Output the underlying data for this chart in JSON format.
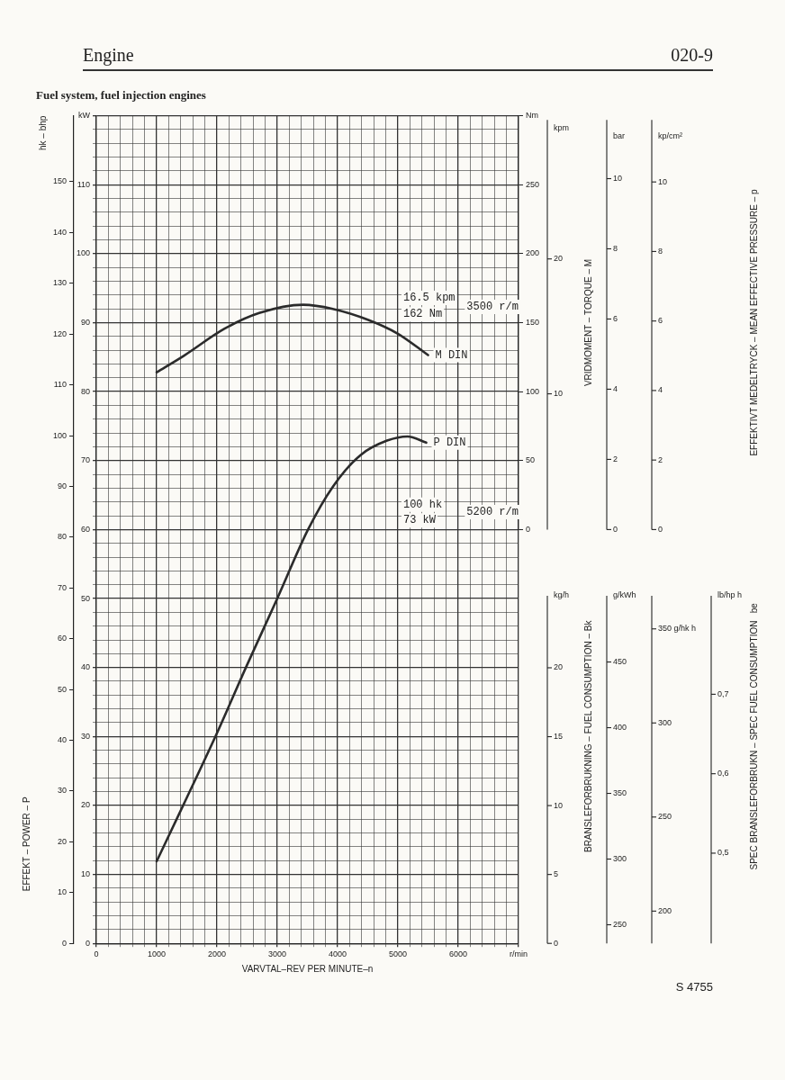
{
  "chart_data": {
    "type": "line",
    "title": "Fuel system, fuel injection engines",
    "xlabel": "VARVTAL–REV PER MINUTE–n",
    "ylabel": "EFFEKT – POWER – P",
    "y2label": "VRIDMOMENT – TORQUE – M",
    "y3label": "hk – bhp",
    "annotations": [
      "Engine",
      "020-9",
      "S 4755",
      "10",
      "20",
      "kpm",
      "0",
      "2",
      "4",
      "6",
      "8",
      "10",
      "bar",
      "0",
      "2",
      "4",
      "6",
      "8",
      "10",
      "kp/cm²",
      "0",
      "5",
      "10",
      "15",
      "20",
      "kg/h",
      "250",
      "300",
      "350",
      "400",
      "450",
      "g/kWh",
      "200",
      "250",
      "300",
      "350 g/hk h",
      "0,5",
      "0,6",
      "0,7",
      "lb/hp h",
      "16.5 kpm",
      "162 Nm",
      "3500 r/m",
      "100 hk",
      "73 kW",
      "5200 r/m",
      "EFFEKTIVT MEDELTRYCK – MEAN EFFECTIVE PRESSURE – p",
      "BRANSLEFORBRUKNING – FUEL CONSUMPTION – Bk",
      "SPEC BRANSLEFORBRUKN – SPEC FUEL CONSUMPTION   be"
    ],
    "series": [
      {
        "name": "M DIN",
        "color": "#2b2b2b",
        "axis": "y2",
        "x": [
          1000,
          1450,
          2120,
          2700,
          3430,
          3920,
          4510,
          5000,
          5500
        ],
        "values": [
          114,
          126,
          145.5,
          157,
          163,
          160,
          152,
          142,
          126.5
        ]
      },
      {
        "name": "P DIN",
        "color": "#2b2b2b",
        "axis": "y",
        "x": [
          1000,
          1450,
          1990,
          2490,
          3000,
          3510,
          3920,
          4380,
          4820,
          5160,
          5470
        ],
        "values": [
          11.9,
          20.2,
          30.3,
          40.2,
          50,
          60,
          66.2,
          70.8,
          72.9,
          73.5,
          72.6
        ]
      }
    ],
    "xlim": [
      0,
      7000
    ],
    "xticks": [
      0,
      {
        "value": 200,
        "label": null
      },
      {
        "value": 400,
        "label": null
      },
      {
        "value": 600,
        "label": null
      },
      {
        "value": 800,
        "label": null
      },
      1000,
      {
        "value": 1200,
        "label": null
      },
      {
        "value": 1400,
        "label": null
      },
      {
        "value": 1600,
        "label": null
      },
      {
        "value": 1800,
        "label": null
      },
      2000,
      {
        "value": 2200,
        "label": null
      },
      {
        "value": 2400,
        "label": null
      },
      {
        "value": 2600,
        "label": null
      },
      {
        "value": 2800,
        "label": null
      },
      3000,
      {
        "value": 3200,
        "label": null
      },
      {
        "value": 3400,
        "label": null
      },
      {
        "value": 3600,
        "label": null
      },
      {
        "value": 3800,
        "label": null
      },
      4000,
      {
        "value": 4200,
        "label": null
      },
      {
        "value": 4400,
        "label": null
      },
      {
        "value": 4600,
        "label": null
      },
      {
        "value": 4800,
        "label": null
      },
      5000,
      {
        "value": 5200,
        "label": null
      },
      {
        "value": 5400,
        "label": null
      },
      {
        "value": 5600,
        "label": null
      },
      {
        "value": 5800,
        "label": null
      },
      6000,
      {
        "value": 6200,
        "label": null
      },
      {
        "value": 6400,
        "label": null
      },
      {
        "value": 6600,
        "label": null
      },
      {
        "value": 6800,
        "label": null
      },
      {
        "value": 7000,
        "label": "r/min"
      }
    ],
    "ylim": [
      0,
      120
    ],
    "yticks": [
      0,
      {
        "value": 2,
        "label": null
      },
      {
        "value": 4,
        "label": null
      },
      {
        "value": 6,
        "label": null
      },
      {
        "value": 8,
        "label": null
      },
      10,
      {
        "value": 12,
        "label": null
      },
      {
        "value": 14,
        "label": null
      },
      {
        "value": 16,
        "label": null
      },
      {
        "value": 18,
        "label": null
      },
      20,
      {
        "value": 22,
        "label": null
      },
      {
        "value": 24,
        "label": null
      },
      {
        "value": 26,
        "label": null
      },
      {
        "value": 28,
        "label": null
      },
      30,
      {
        "value": 32,
        "label": null
      },
      {
        "value": 34,
        "label": null
      },
      {
        "value": 36,
        "label": null
      },
      {
        "value": 38,
        "label": null
      },
      40,
      {
        "value": 42,
        "label": null
      },
      {
        "value": 44,
        "label": null
      },
      {
        "value": 46,
        "label": null
      },
      {
        "value": 48,
        "label": null
      },
      50,
      {
        "value": 52,
        "label": null
      },
      {
        "value": 54,
        "label": null
      },
      {
        "value": 56,
        "label": null
      },
      {
        "value": 58,
        "label": null
      },
      60,
      {
        "value": 62,
        "label": null
      },
      {
        "value": 64,
        "label": null
      },
      {
        "value": 66,
        "label": null
      },
      {
        "value": 68,
        "label": null
      },
      70,
      {
        "value": 72,
        "label": null
      },
      {
        "value": 74,
        "label": null
      },
      {
        "value": 76,
        "label": null
      },
      {
        "value": 78,
        "label": null
      },
      80,
      {
        "value": 82,
        "label": null
      },
      {
        "value": 84,
        "label": null
      },
      {
        "value": 86,
        "label": null
      },
      {
        "value": 88,
        "label": null
      },
      90,
      {
        "value": 92,
        "label": null
      },
      {
        "value": 94,
        "label": null
      },
      {
        "value": 96,
        "label": null
      },
      {
        "value": 98,
        "label": null
      },
      100,
      {
        "value": 102,
        "label": null
      },
      {
        "value": 104,
        "label": null
      },
      {
        "value": 106,
        "label": null
      },
      {
        "value": 108,
        "label": null
      },
      110,
      {
        "value": 112,
        "label": null
      },
      {
        "value": 114,
        "label": null
      },
      {
        "value": 116,
        "label": null
      },
      {
        "value": 118,
        "label": null
      },
      {
        "value": 120,
        "label": "kW"
      }
    ],
    "y3lim": [
      0,
      163
    ],
    "y3ticks": [
      0,
      10,
      20,
      30,
      40,
      50,
      60,
      70,
      80,
      90,
      100,
      110,
      120,
      130,
      140,
      150
    ],
    "y2lim": [
      0,
      300
    ],
    "y2ticks": [
      0,
      50,
      100,
      150,
      200,
      250,
      {
        "value": 300,
        "label": "Nm"
      }
    ],
    "grid": true,
    "marker": "none",
    "line_style": "solid"
  }
}
